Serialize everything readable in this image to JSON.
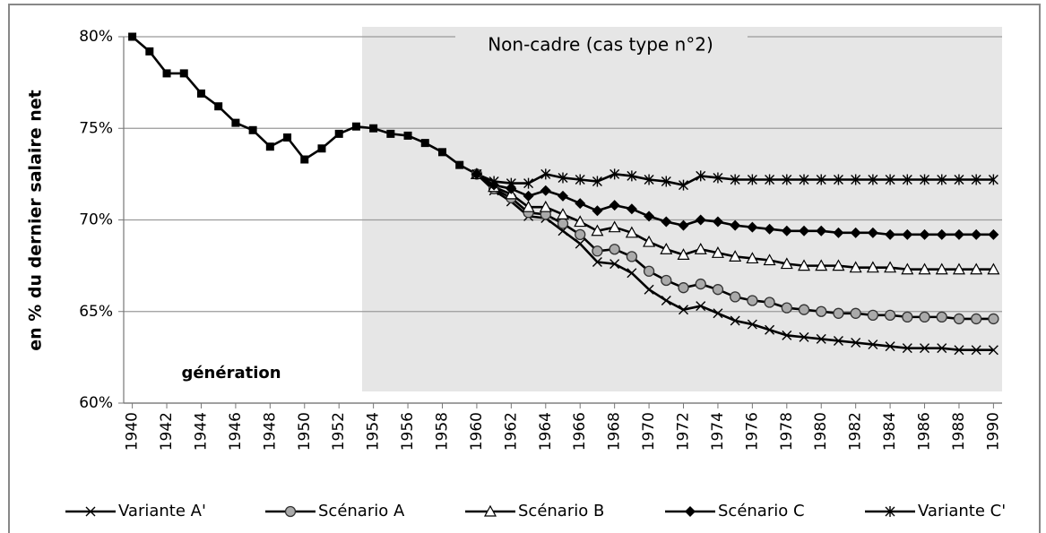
{
  "chart_data": {
    "type": "line",
    "ylabel": "en % du dernier salaire net",
    "annotations": [
      "Non-cadre (cas type n°2)",
      "génération"
    ],
    "x": [
      1940,
      1941,
      1942,
      1943,
      1944,
      1945,
      1946,
      1947,
      1948,
      1949,
      1950,
      1951,
      1952,
      1953,
      1954,
      1955,
      1956,
      1957,
      1958,
      1959,
      1960,
      1961,
      1962,
      1963,
      1964,
      1965,
      1966,
      1967,
      1968,
      1969,
      1970,
      1971,
      1972,
      1973,
      1974,
      1975,
      1976,
      1977,
      1978,
      1979,
      1980,
      1981,
      1982,
      1983,
      1984,
      1985,
      1986,
      1987,
      1988,
      1989,
      1990
    ],
    "xlim": [
      1939.5,
      1990.5
    ],
    "xticks": [
      1940,
      1942,
      1944,
      1946,
      1948,
      1950,
      1952,
      1954,
      1956,
      1958,
      1960,
      1962,
      1964,
      1966,
      1968,
      1970,
      1972,
      1974,
      1976,
      1978,
      1980,
      1982,
      1984,
      1986,
      1988,
      1990
    ],
    "ylim": [
      60,
      80
    ],
    "yticks": [
      {
        "value": 60,
        "label": "60%"
      },
      {
        "value": 65,
        "label": "65%"
      },
      {
        "value": 70,
        "label": "70%"
      },
      {
        "value": 75,
        "label": "75%"
      },
      {
        "value": 80,
        "label": "80%"
      }
    ],
    "grid": true,
    "legend": "bottom",
    "series": [
      {
        "color": "#000000",
        "marker": "square",
        "values": [
          80.0,
          79.2,
          78.0,
          78.0,
          76.9,
          76.2,
          75.3,
          74.9,
          74.0,
          74.5,
          73.3,
          73.9,
          74.7,
          75.1,
          75.0,
          74.7,
          74.6,
          74.2,
          73.7,
          73.0,
          72.5,
          null,
          null,
          null,
          null,
          null,
          null,
          null,
          null,
          null,
          null,
          null,
          null,
          null,
          null,
          null,
          null,
          null,
          null,
          null,
          null,
          null,
          null,
          null,
          null,
          null,
          null,
          null,
          null,
          null,
          null
        ]
      },
      {
        "name": "Variante A'",
        "color": "#000000",
        "marker": "x",
        "values": [
          null,
          null,
          null,
          null,
          null,
          null,
          null,
          null,
          null,
          null,
          null,
          null,
          null,
          null,
          null,
          null,
          null,
          null,
          null,
          null,
          72.5,
          71.6,
          71.0,
          70.2,
          70.1,
          69.4,
          68.7,
          67.7,
          67.6,
          67.1,
          66.2,
          65.6,
          65.1,
          65.3,
          64.9,
          64.5,
          64.3,
          64.0,
          63.7,
          63.6,
          63.5,
          63.4,
          63.3,
          63.2,
          63.1,
          63.0,
          63.0,
          63.0,
          62.9,
          62.9,
          62.9
        ]
      },
      {
        "name": "Scénario A",
        "color": "#000000",
        "marker": "circle",
        "values": [
          null,
          null,
          null,
          null,
          null,
          null,
          null,
          null,
          null,
          null,
          null,
          null,
          null,
          null,
          null,
          null,
          null,
          null,
          null,
          null,
          72.5,
          71.7,
          71.2,
          70.4,
          70.3,
          69.8,
          69.2,
          68.3,
          68.4,
          68.0,
          67.2,
          66.7,
          66.3,
          66.5,
          66.2,
          65.8,
          65.6,
          65.5,
          65.2,
          65.1,
          65.0,
          64.9,
          64.9,
          64.8,
          64.8,
          64.7,
          64.7,
          64.7,
          64.6,
          64.6,
          64.6
        ]
      },
      {
        "name": "Scénario B",
        "color": "#000000",
        "marker": "triangle",
        "values": [
          null,
          null,
          null,
          null,
          null,
          null,
          null,
          null,
          null,
          null,
          null,
          null,
          null,
          null,
          null,
          null,
          null,
          null,
          null,
          null,
          72.5,
          71.8,
          71.4,
          70.7,
          70.7,
          70.3,
          69.9,
          69.4,
          69.6,
          69.3,
          68.8,
          68.4,
          68.1,
          68.4,
          68.2,
          68.0,
          67.9,
          67.8,
          67.6,
          67.5,
          67.5,
          67.5,
          67.4,
          67.4,
          67.4,
          67.3,
          67.3,
          67.3,
          67.3,
          67.3,
          67.3
        ]
      },
      {
        "name": "Scénario C",
        "color": "#000000",
        "marker": "diamond",
        "values": [
          null,
          null,
          null,
          null,
          null,
          null,
          null,
          null,
          null,
          null,
          null,
          null,
          null,
          null,
          null,
          null,
          null,
          null,
          null,
          null,
          72.5,
          71.9,
          71.7,
          71.3,
          71.6,
          71.3,
          70.9,
          70.5,
          70.8,
          70.6,
          70.2,
          69.9,
          69.7,
          70.0,
          69.9,
          69.7,
          69.6,
          69.5,
          69.4,
          69.4,
          69.4,
          69.3,
          69.3,
          69.3,
          69.2,
          69.2,
          69.2,
          69.2,
          69.2,
          69.2,
          69.2
        ]
      },
      {
        "name": "Variante C'",
        "color": "#000000",
        "marker": "asterisk",
        "values": [
          null,
          null,
          null,
          null,
          null,
          null,
          null,
          null,
          null,
          null,
          null,
          null,
          null,
          null,
          null,
          null,
          null,
          null,
          null,
          null,
          72.5,
          72.1,
          72.0,
          72.0,
          72.5,
          72.3,
          72.2,
          72.1,
          72.5,
          72.4,
          72.2,
          72.1,
          71.9,
          72.4,
          72.3,
          72.2,
          72.2,
          72.2,
          72.2,
          72.2,
          72.2,
          72.2,
          72.2,
          72.2,
          72.2,
          72.2,
          72.2,
          72.2,
          72.2,
          72.2,
          72.2
        ]
      }
    ]
  }
}
